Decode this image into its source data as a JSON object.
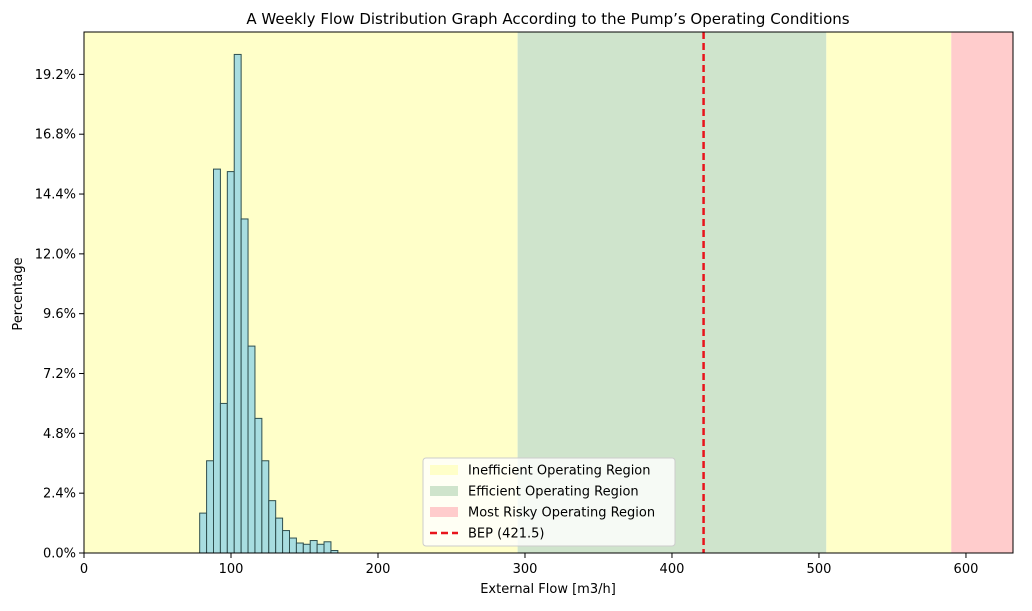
{
  "chart_data": {
    "type": "bar",
    "title": "A Weekly Flow Distribution Graph According to the Pump’s Operating Conditions",
    "xlabel": "External Flow [m3/h]",
    "ylabel": "Percentage",
    "xlim": [
      0,
      632
    ],
    "ylim": [
      0,
      20.9
    ],
    "xticks": [
      0,
      100,
      200,
      300,
      400,
      500,
      600
    ],
    "yticks": [
      0,
      2.4,
      4.8,
      7.2,
      9.6,
      12.0,
      14.4,
      16.8,
      19.2
    ],
    "ytick_labels": [
      "0.0%",
      "2.4%",
      "4.8%",
      "7.2%",
      "9.6%",
      "12.0%",
      "14.4%",
      "16.8%",
      "19.2%"
    ],
    "bin_width": 4.7,
    "bin_start": 78.7,
    "values": [
      1.6,
      3.7,
      15.4,
      6.0,
      15.3,
      20.0,
      13.4,
      8.3,
      5.4,
      3.7,
      2.1,
      1.4,
      0.9,
      0.6,
      0.4,
      0.35,
      0.5,
      0.35,
      0.45,
      0.1
    ],
    "bar_color": "#a8dde0",
    "bar_edge_color": "#2f4f4f",
    "regions": [
      {
        "name": "Inefficient Operating Region",
        "from": 0,
        "to": 295,
        "color": "#ffffc9"
      },
      {
        "name": "Efficient Operating Region",
        "from": 295,
        "to": 505,
        "color": "#cfe4cc"
      },
      {
        "name": "Inefficient Operating Region",
        "from": 505,
        "to": 590,
        "color": "#ffffc9"
      },
      {
        "name": "Most Risky Operating Region",
        "from": 590,
        "to": 632,
        "color": "#ffcccc"
      }
    ],
    "bep": {
      "label": "BEP (421.5)",
      "value": 421.5,
      "color": "#e8141c"
    },
    "legend": {
      "placement": "lower-center",
      "entries": [
        {
          "label": "Inefficient Operating Region",
          "kind": "patch",
          "color": "#ffffc9"
        },
        {
          "label": "Efficient Operating Region",
          "kind": "patch",
          "color": "#cfe4cc"
        },
        {
          "label": "Most Risky Operating Region",
          "kind": "patch",
          "color": "#ffcccc"
        },
        {
          "label": "BEP (421.5)",
          "kind": "dashed-line",
          "color": "#e8141c"
        }
      ]
    },
    "grid": false
  }
}
